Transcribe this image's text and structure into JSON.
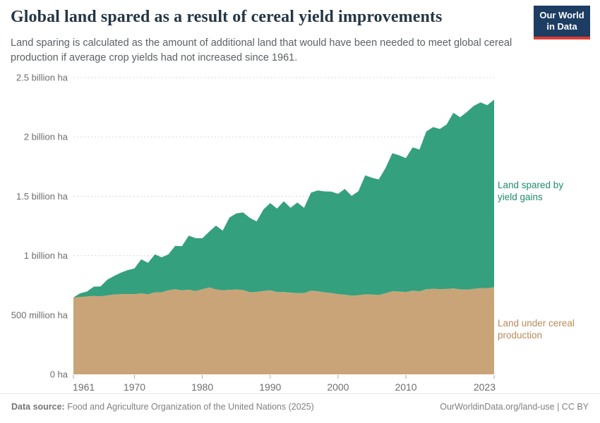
{
  "header": {
    "title": "Global land spared as a result of cereal yield improvements",
    "subtitle": "Land sparing is calculated as the amount of additional land that would have been needed to meet global cereal production if average crop yields had not increased since 1961.",
    "logo": {
      "line1": "Our World",
      "line2": "in Data",
      "bg_color": "#1d3d63",
      "bar_color": "#dc3d33"
    }
  },
  "chart_data": {
    "type": "area",
    "stacked": true,
    "title": "Global land spared as a result of cereal yield improvements",
    "unit": "hectares (millions)",
    "grid": "horizontal-dashed",
    "legend_position": "right-of-plot",
    "ylim": [
      0,
      2500
    ],
    "ytick_values": [
      0,
      500,
      1000,
      1500,
      2000,
      2500
    ],
    "ytick_labels": [
      "0 ha",
      "500 million ha",
      "1 billion ha",
      "1.5 billion ha",
      "2 billion ha",
      "2.5 billion ha"
    ],
    "xtick_values": [
      1961,
      1970,
      1980,
      1990,
      2000,
      2010,
      2023
    ],
    "x": [
      1961,
      1962,
      1963,
      1964,
      1965,
      1966,
      1967,
      1968,
      1969,
      1970,
      1971,
      1972,
      1973,
      1974,
      1975,
      1976,
      1977,
      1978,
      1979,
      1980,
      1981,
      1982,
      1983,
      1984,
      1985,
      1986,
      1987,
      1988,
      1989,
      1990,
      1991,
      1992,
      1993,
      1994,
      1995,
      1996,
      1997,
      1998,
      1999,
      2000,
      2001,
      2002,
      2003,
      2004,
      2005,
      2006,
      2007,
      2008,
      2009,
      2010,
      2011,
      2012,
      2013,
      2014,
      2015,
      2016,
      2017,
      2018,
      2019,
      2020,
      2021,
      2022,
      2023
    ],
    "series": [
      {
        "name": "Land under cereal production",
        "color": "#c9a478",
        "label_color": "#b98a58",
        "values": [
          648,
          652,
          656,
          661,
          658,
          665,
          672,
          676,
          677,
          675,
          683,
          674,
          692,
          692,
          708,
          717,
          707,
          713,
          702,
          717,
          732,
          716,
          708,
          712,
          715,
          710,
          692,
          695,
          702,
          708,
          693,
          694,
          688,
          684,
          685,
          705,
          700,
          691,
          685,
          675,
          671,
          663,
          666,
          674,
          672,
          668,
          683,
          700,
          698,
          693,
          705,
          699,
          717,
          721,
          718,
          719,
          724,
          716,
          714,
          720,
          727,
          725,
          735
        ]
      },
      {
        "name": "Land spared by yield gains",
        "color": "#34a07e",
        "label_color": "#1e8c6e",
        "values": [
          0,
          31,
          42,
          78,
          83,
          133,
          157,
          181,
          201,
          217,
          286,
          265,
          319,
          294,
          303,
          365,
          373,
          455,
          445,
          429,
          470,
          537,
          503,
          609,
          640,
          654,
          626,
          593,
          687,
          735,
          703,
          764,
          715,
          763,
          718,
          826,
          849,
          850,
          855,
          846,
          891,
          840,
          876,
          1002,
          984,
          974,
          1055,
          1163,
          1147,
          1128,
          1207,
          1195,
          1329,
          1362,
          1349,
          1386,
          1479,
          1450,
          1496,
          1542,
          1564,
          1542,
          1579
        ]
      }
    ]
  },
  "footer": {
    "source_label": "Data source:",
    "source_text": "Food and Agriculture Organization of the United Nations (2025)",
    "link_text": "OurWorldinData.org/land-use | CC BY"
  }
}
